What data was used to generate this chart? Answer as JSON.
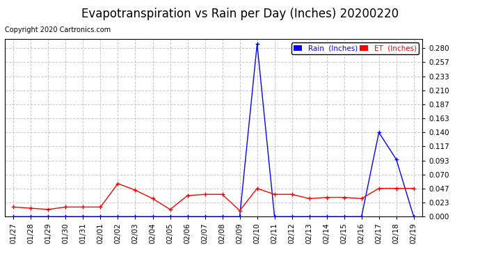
{
  "title": "Evapotranspiration vs Rain per Day (Inches) 20200220",
  "copyright": "Copyright 2020 Cartronics.com",
  "labels": [
    "01/27",
    "01/28",
    "01/29",
    "01/30",
    "01/31",
    "02/01",
    "02/02",
    "02/03",
    "02/04",
    "02/05",
    "02/06",
    "02/07",
    "02/08",
    "02/09",
    "02/10",
    "02/11",
    "02/12",
    "02/13",
    "02/14",
    "02/15",
    "02/16",
    "02/17",
    "02/18",
    "02/19"
  ],
  "rain_inches": [
    0.0,
    0.0,
    0.0,
    0.0,
    0.0,
    0.0,
    0.0,
    0.0,
    0.0,
    0.0,
    0.0,
    0.0,
    0.0,
    0.0,
    0.287,
    0.0,
    0.0,
    0.0,
    0.0,
    0.0,
    0.0,
    0.14,
    0.095,
    0.0
  ],
  "et_inches": [
    0.016,
    0.014,
    0.012,
    0.016,
    0.016,
    0.016,
    0.055,
    0.044,
    0.03,
    0.012,
    0.035,
    0.037,
    0.037,
    0.01,
    0.047,
    0.037,
    0.037,
    0.03,
    0.032,
    0.032,
    0.03,
    0.047,
    0.047,
    0.047
  ],
  "rain_color": "#0000ff",
  "et_color": "#ff0000",
  "background_color": "#ffffff",
  "grid_color": "#c8c8c8",
  "ylim": [
    0.0,
    0.295
  ],
  "yticks": [
    0.0,
    0.023,
    0.047,
    0.07,
    0.093,
    0.117,
    0.14,
    0.163,
    0.187,
    0.21,
    0.233,
    0.257,
    0.28
  ],
  "title_fontsize": 12,
  "copyright_fontsize": 7,
  "tick_fontsize": 7.5,
  "legend_rain_label": "Rain  (Inches)",
  "legend_et_label": "ET  (Inches)",
  "legend_rain_bg": "#0000ff",
  "legend_et_bg": "#ff0000",
  "marker": "+",
  "linewidth": 1.0
}
